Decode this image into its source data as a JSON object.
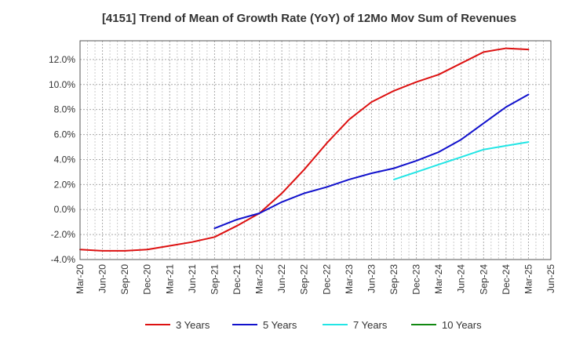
{
  "chart_data": {
    "type": "line",
    "title": "[4151]  Trend of Mean of Growth Rate (YoY) of 12Mo Mov Sum of Revenues",
    "xlabel": "",
    "ylabel": "",
    "ylim": [
      -4.0,
      13.5
    ],
    "yticks": [
      -4.0,
      -2.0,
      0.0,
      2.0,
      4.0,
      6.0,
      8.0,
      10.0,
      12.0
    ],
    "ytick_labels": [
      "-4.0%",
      "-2.0%",
      "0.0%",
      "2.0%",
      "4.0%",
      "6.0%",
      "8.0%",
      "10.0%",
      "12.0%"
    ],
    "x_range_months": [
      0,
      63
    ],
    "xtick_labels": [
      "Mar-20",
      "Jun-20",
      "Sep-20",
      "Dec-20",
      "Mar-21",
      "Jun-21",
      "Sep-21",
      "Dec-21",
      "Mar-22",
      "Jun-22",
      "Sep-22",
      "Dec-22",
      "Mar-23",
      "Jun-23",
      "Sep-23",
      "Dec-23",
      "Mar-24",
      "Jun-24",
      "Sep-24",
      "Dec-24",
      "Mar-25",
      "Jun-25"
    ],
    "grid": true,
    "legend_position": "bottom",
    "series": [
      {
        "name": "3 Years",
        "color": "#dd1111",
        "x": [
          0,
          3,
          6,
          9,
          12,
          15,
          18,
          21,
          24,
          27,
          30,
          33,
          36,
          39,
          42,
          45,
          48,
          51,
          54,
          57,
          60
        ],
        "values": [
          -3.2,
          -3.3,
          -3.3,
          -3.2,
          -2.9,
          -2.6,
          -2.2,
          -1.3,
          -0.3,
          1.3,
          3.2,
          5.3,
          7.2,
          8.6,
          9.5,
          10.2,
          10.8,
          11.7,
          12.6,
          12.9,
          12.8
        ]
      },
      {
        "name": "5 Years",
        "color": "#1111cc",
        "x": [
          18,
          21,
          24,
          27,
          30,
          33,
          36,
          39,
          42,
          45,
          48,
          51,
          54,
          57,
          60
        ],
        "values": [
          -1.5,
          -0.8,
          -0.3,
          0.6,
          1.3,
          1.8,
          2.4,
          2.9,
          3.3,
          3.9,
          4.6,
          5.6,
          6.9,
          8.2,
          9.2
        ]
      },
      {
        "name": "7 Years",
        "color": "#22e5e5",
        "x": [
          42,
          45,
          48,
          51,
          54,
          57,
          60
        ],
        "values": [
          2.4,
          3.0,
          3.6,
          4.2,
          4.8,
          5.1,
          5.4
        ]
      },
      {
        "name": "10 Years",
        "color": "#118811",
        "x": [],
        "values": []
      }
    ]
  }
}
